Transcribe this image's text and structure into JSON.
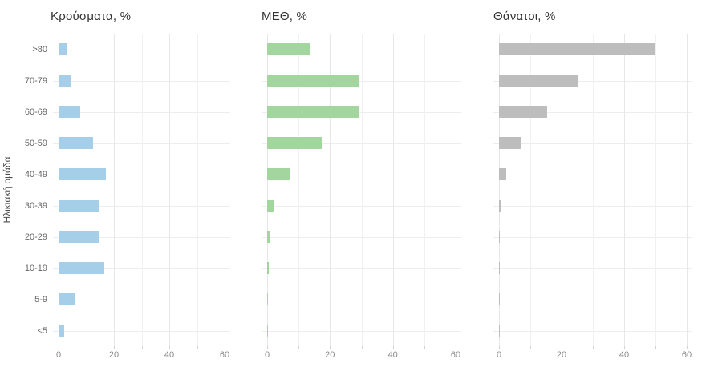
{
  "figure": {
    "background": "#ffffff",
    "y_axis_title": "Ηλικιακή ομάδα"
  },
  "chart_data": [
    {
      "type": "bar",
      "orientation": "horizontal",
      "title": "Κρούσματα, %",
      "ylabel": "Ηλικιακή ομάδα",
      "categories": [
        ">80",
        "70-79",
        "60-69",
        "50-59",
        "40-49",
        "30-39",
        "20-29",
        "10-19",
        "5-9",
        "<5"
      ],
      "values": [
        3.0,
        4.6,
        7.8,
        12.5,
        17.0,
        14.8,
        14.5,
        16.5,
        6.1,
        2.1
      ],
      "color": "#a5cfe8",
      "xlim": [
        0,
        60
      ],
      "xticks": [
        0,
        20,
        40,
        60
      ],
      "gridline_step": 10,
      "grid": "on",
      "legend": "none"
    },
    {
      "type": "bar",
      "orientation": "horizontal",
      "title": "ΜΕΘ, %",
      "ylabel": "",
      "categories": [
        ">80",
        "70-79",
        "60-69",
        "50-59",
        "40-49",
        "30-39",
        "20-29",
        "10-19",
        "5-9",
        "<5"
      ],
      "values": [
        13.5,
        29.0,
        29.0,
        17.3,
        7.3,
        2.3,
        1.0,
        0.4,
        0.15,
        0.3
      ],
      "color": "#a3d59f",
      "xlim": [
        0,
        60
      ],
      "xticks": [
        0,
        20,
        40,
        60
      ],
      "gridline_step": 10,
      "grid": "on",
      "legend": "none"
    },
    {
      "type": "bar",
      "orientation": "horizontal",
      "title": "Θάνατοι, %",
      "ylabel": "",
      "categories": [
        ">80",
        "70-79",
        "60-69",
        "50-59",
        "40-49",
        "30-39",
        "20-29",
        "10-19",
        "5-9",
        "<5"
      ],
      "values": [
        50.0,
        25.0,
        15.3,
        6.8,
        2.3,
        0.6,
        0.25,
        0.15,
        0.05,
        0.1
      ],
      "color": "#bdbdbd",
      "xlim": [
        0,
        60
      ],
      "xticks": [
        0,
        20,
        40,
        60
      ],
      "gridline_step": 10,
      "grid": "on",
      "legend": "none"
    }
  ]
}
